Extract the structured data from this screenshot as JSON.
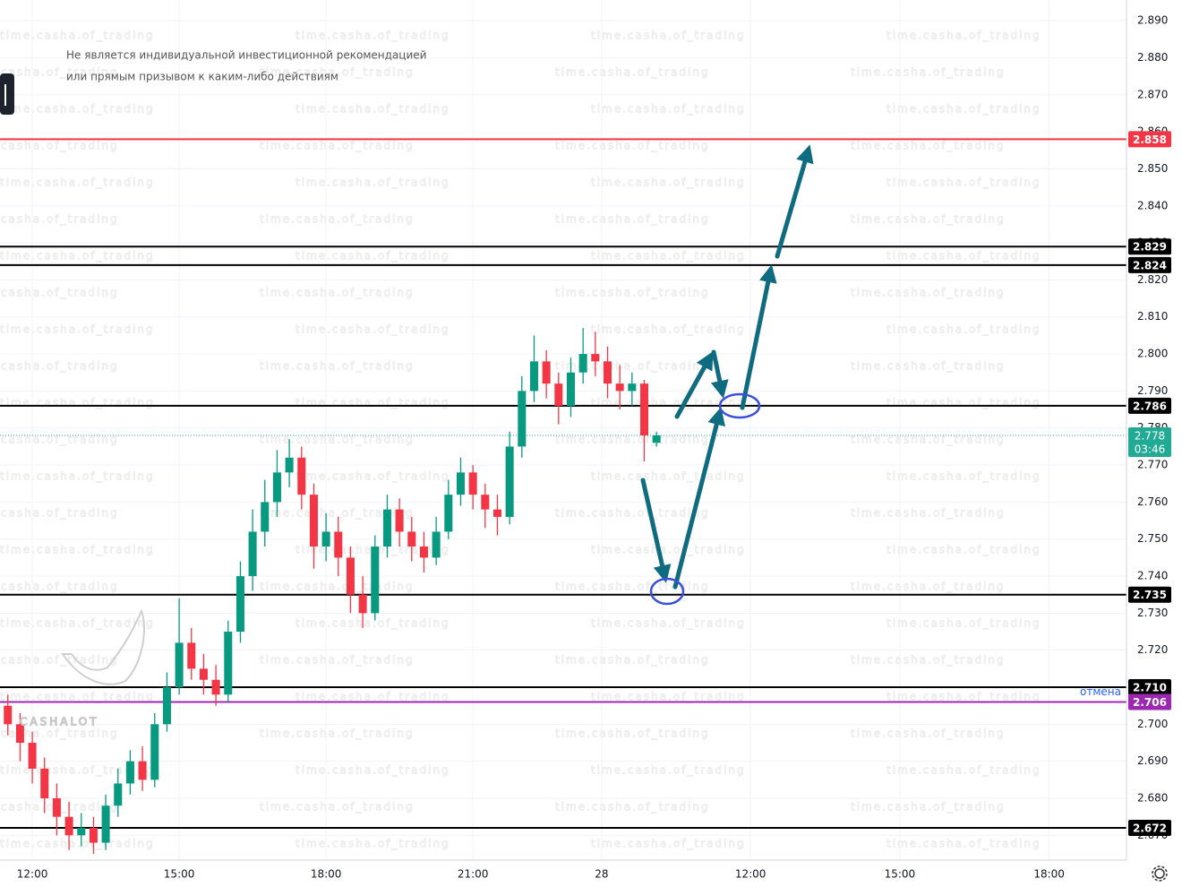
{
  "chart_data": {
    "type": "candlestick",
    "disclaimer": [
      "Не является индивидуальной инвестиционной рекомендацией",
      "или прямым призывом к каким-либо действиям"
    ],
    "logo": "CASHALOT",
    "watermark": "time.casha.of_trading",
    "up_color": "#089981",
    "down_color": "#f23645",
    "x": [
      -0.5,
      -0.25,
      0,
      0.25,
      0.5,
      0.75,
      1,
      1.25,
      1.5,
      1.75,
      2,
      2.25,
      2.5,
      2.75,
      3,
      3.25,
      3.5,
      3.75,
      4,
      4.25,
      4.5,
      4.75,
      5,
      5.25,
      5.5,
      5.75,
      6,
      6.25,
      6.5,
      6.75,
      7,
      7.25,
      7.5,
      7.75,
      8,
      8.25,
      8.5,
      8.75,
      9,
      9.25,
      9.5,
      9.75,
      10,
      10.25,
      10.5,
      10.75,
      11,
      11.25,
      11.5,
      11.75,
      12,
      12.25,
      12.5,
      12.75
    ],
    "open": [
      2.705,
      2.7,
      2.695,
      2.688,
      2.68,
      2.675,
      2.67,
      2.672,
      2.668,
      2.678,
      2.684,
      2.69,
      2.685,
      2.7,
      2.71,
      2.722,
      2.715,
      2.712,
      2.708,
      2.725,
      2.74,
      2.752,
      2.76,
      2.768,
      2.772,
      2.762,
      2.748,
      2.752,
      2.745,
      2.735,
      2.73,
      2.748,
      2.758,
      2.752,
      2.748,
      2.745,
      2.752,
      2.762,
      2.768,
      2.762,
      2.758,
      2.756,
      2.775,
      2.79,
      2.798,
      2.792,
      2.786,
      2.795,
      2.8,
      2.798,
      2.792,
      2.79,
      2.792,
      2.776
    ],
    "high": [
      2.708,
      2.703,
      2.698,
      2.691,
      2.684,
      2.679,
      2.676,
      2.675,
      2.681,
      2.688,
      2.693,
      2.694,
      2.703,
      2.714,
      2.734,
      2.726,
      2.719,
      2.716,
      2.728,
      2.744,
      2.758,
      2.766,
      2.774,
      2.777,
      2.775,
      2.765,
      2.757,
      2.756,
      2.748,
      2.74,
      2.751,
      2.762,
      2.761,
      2.756,
      2.752,
      2.756,
      2.766,
      2.772,
      2.77,
      2.765,
      2.762,
      2.779,
      2.794,
      2.805,
      2.801,
      2.795,
      2.799,
      2.807,
      2.806,
      2.802,
      2.797,
      2.795,
      2.793,
      2.779
    ],
    "low": [
      2.697,
      2.69,
      2.684,
      2.676,
      2.67,
      2.666,
      2.667,
      2.665,
      2.666,
      2.675,
      2.681,
      2.682,
      2.683,
      2.698,
      2.708,
      2.712,
      2.708,
      2.705,
      2.706,
      2.722,
      2.736,
      2.748,
      2.756,
      2.764,
      2.758,
      2.742,
      2.744,
      2.74,
      2.73,
      2.726,
      2.728,
      2.745,
      2.748,
      2.744,
      2.741,
      2.743,
      2.75,
      2.759,
      2.758,
      2.753,
      2.751,
      2.754,
      2.772,
      2.787,
      2.788,
      2.781,
      2.783,
      2.792,
      2.794,
      2.788,
      2.785,
      2.786,
      2.771,
      2.775
    ],
    "close": [
      2.7,
      2.695,
      2.688,
      2.68,
      2.675,
      2.67,
      2.672,
      2.668,
      2.678,
      2.684,
      2.69,
      2.685,
      2.7,
      2.71,
      2.722,
      2.715,
      2.712,
      2.708,
      2.725,
      2.74,
      2.752,
      2.76,
      2.768,
      2.772,
      2.762,
      2.748,
      2.752,
      2.745,
      2.735,
      2.73,
      2.748,
      2.758,
      2.752,
      2.748,
      2.745,
      2.752,
      2.762,
      2.768,
      2.762,
      2.758,
      2.756,
      2.775,
      2.79,
      2.798,
      2.792,
      2.786,
      2.795,
      2.8,
      2.798,
      2.792,
      2.79,
      2.792,
      2.778,
      2.778
    ],
    "xlim": [
      -0.66,
      22.35
    ],
    "ylim": [
      2.6633,
      2.8956
    ],
    "xticks": [
      {
        "value": 0,
        "label": "12:00"
      },
      {
        "value": 3,
        "label": "15:00"
      },
      {
        "value": 6,
        "label": "18:00"
      },
      {
        "value": 9,
        "label": "21:00"
      },
      {
        "value": 11.63,
        "label": "28"
      },
      {
        "value": 14.67,
        "label": "12:00"
      },
      {
        "value": 17.72,
        "label": "15:00"
      },
      {
        "value": 20.77,
        "label": "18:00"
      }
    ],
    "yticks": [
      {
        "value": 2.67,
        "label": "2.670"
      },
      {
        "value": 2.68,
        "label": "2.680"
      },
      {
        "value": 2.69,
        "label": "2.690"
      },
      {
        "value": 2.7,
        "label": "2.700"
      },
      {
        "value": 2.71,
        "label": "2.710"
      },
      {
        "value": 2.72,
        "label": "2.720"
      },
      {
        "value": 2.73,
        "label": "2.730"
      },
      {
        "value": 2.74,
        "label": "2.740"
      },
      {
        "value": 2.75,
        "label": "2.750"
      },
      {
        "value": 2.76,
        "label": "2.760"
      },
      {
        "value": 2.77,
        "label": "2.770"
      },
      {
        "value": 2.78,
        "label": "2.780"
      },
      {
        "value": 2.79,
        "label": "2.790"
      },
      {
        "value": 2.8,
        "label": "2.800"
      },
      {
        "value": 2.81,
        "label": "2.810"
      },
      {
        "value": 2.82,
        "label": "2.820"
      },
      {
        "value": 2.83,
        "label": "2.830"
      },
      {
        "value": 2.84,
        "label": "2.840"
      },
      {
        "value": 2.85,
        "label": "2.850"
      },
      {
        "value": 2.86,
        "label": "2.860"
      },
      {
        "value": 2.87,
        "label": "2.870"
      },
      {
        "value": 2.88,
        "label": "2.880"
      },
      {
        "value": 2.89,
        "label": "2.890"
      }
    ],
    "grid": true,
    "levels": [
      {
        "price": 2.858,
        "color": "#f23645"
      },
      {
        "price": 2.829,
        "color": "#000000"
      },
      {
        "price": 2.824,
        "color": "#000000"
      },
      {
        "price": 2.786,
        "color": "#000000"
      },
      {
        "price": 2.735,
        "color": "#000000"
      },
      {
        "price": {
          "value": 2.71,
          "label": "2.710"
        },
        "color": "#000000"
      },
      {
        "price": 2.706,
        "color": "#9c27b0",
        "note": "отмена"
      },
      {
        "price": 2.672,
        "color": "#000000"
      }
    ],
    "last": {
      "price": 2.778,
      "countdown": "03:46",
      "color": "#22ab94"
    }
  }
}
